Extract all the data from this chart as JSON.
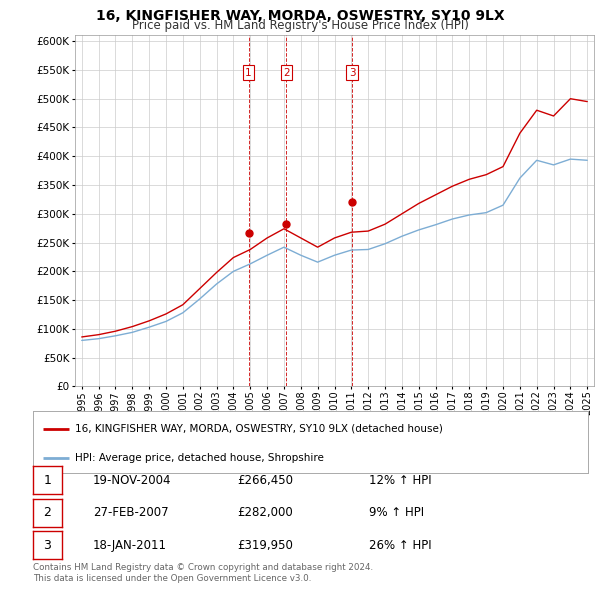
{
  "title": "16, KINGFISHER WAY, MORDA, OSWESTRY, SY10 9LX",
  "subtitle": "Price paid vs. HM Land Registry's House Price Index (HPI)",
  "legend_label_red": "16, KINGFISHER WAY, MORDA, OSWESTRY, SY10 9LX (detached house)",
  "legend_label_blue": "HPI: Average price, detached house, Shropshire",
  "footer_line1": "Contains HM Land Registry data © Crown copyright and database right 2024.",
  "footer_line2": "This data is licensed under the Open Government Licence v3.0.",
  "transactions": [
    {
      "num": "1",
      "date": "19-NOV-2004",
      "price": "£266,450",
      "pct": "12% ↑ HPI"
    },
    {
      "num": "2",
      "date": "27-FEB-2007",
      "price": "£282,000",
      "pct": "9% ↑ HPI"
    },
    {
      "num": "3",
      "date": "18-JAN-2011",
      "price": "£319,950",
      "pct": "26% ↑ HPI"
    }
  ],
  "vline_x": [
    2004.9,
    2007.15,
    2011.05
  ],
  "vline_labels": [
    "1",
    "2",
    "3"
  ],
  "sale_points": [
    [
      2004.9,
      266450
    ],
    [
      2007.15,
      282000
    ],
    [
      2011.05,
      319950
    ]
  ],
  "ylim": [
    0,
    610000
  ],
  "yticks": [
    0,
    50000,
    100000,
    150000,
    200000,
    250000,
    300000,
    350000,
    400000,
    450000,
    500000,
    550000,
    600000
  ],
  "xlim_left": 1994.6,
  "xlim_right": 2025.4,
  "color_red": "#cc0000",
  "color_blue": "#7dadd4",
  "color_grid": "#cccccc",
  "color_bg": "#ffffff",
  "years_hpi": [
    1995,
    1996,
    1997,
    1998,
    1999,
    2000,
    2001,
    2002,
    2003,
    2004,
    2005,
    2006,
    2007,
    2008,
    2009,
    2010,
    2011,
    2012,
    2013,
    2014,
    2015,
    2016,
    2017,
    2018,
    2019,
    2020,
    2021,
    2022,
    2023,
    2024,
    2025
  ],
  "hpi_vals": [
    80000,
    83000,
    88000,
    94000,
    103000,
    113000,
    128000,
    152000,
    178000,
    200000,
    213000,
    228000,
    242000,
    228000,
    216000,
    228000,
    237000,
    238000,
    248000,
    261000,
    272000,
    281000,
    291000,
    298000,
    302000,
    315000,
    362000,
    393000,
    385000,
    395000,
    393000
  ],
  "red_vals": [
    86000,
    90000,
    96000,
    104000,
    114000,
    126000,
    142000,
    170000,
    198000,
    224000,
    238000,
    258000,
    274000,
    258000,
    242000,
    258000,
    268000,
    270000,
    282000,
    300000,
    318000,
    333000,
    348000,
    360000,
    368000,
    382000,
    440000,
    480000,
    470000,
    500000,
    495000
  ]
}
